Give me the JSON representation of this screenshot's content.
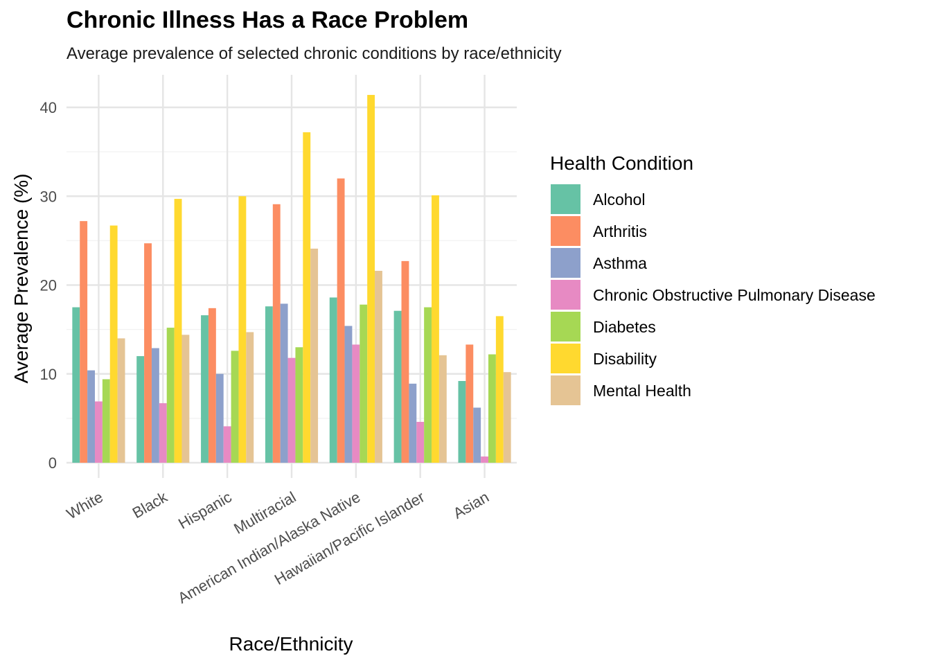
{
  "chart_data": {
    "type": "bar",
    "title": "Chronic Illness Has a Race Problem",
    "subtitle": "Average prevalence of selected chronic conditions by race/ethnicity",
    "xlabel": "Race/Ethnicity",
    "ylabel": "Average Prevalence (%)",
    "ylim": [
      0,
      43
    ],
    "yticks": [
      0,
      10,
      20,
      30,
      40
    ],
    "grid": true,
    "legend_title": "Health Condition",
    "legend_position": "right",
    "categories": [
      "White",
      "Black",
      "Hispanic",
      "Multiracial",
      "American Indian/Alaska Native",
      "Hawaiian/Pacific Islander",
      "Asian"
    ],
    "series": [
      {
        "name": "Alcohol",
        "color": "#66C2A5",
        "values": [
          17.5,
          12.0,
          16.6,
          17.6,
          18.6,
          17.1,
          9.2
        ]
      },
      {
        "name": "Arthritis",
        "color": "#FC8D62",
        "values": [
          27.2,
          24.7,
          17.4,
          29.1,
          32.0,
          22.7,
          13.3
        ]
      },
      {
        "name": "Asthma",
        "color": "#8DA0CB",
        "values": [
          10.4,
          12.9,
          10.0,
          17.9,
          15.4,
          8.9,
          6.2
        ]
      },
      {
        "name": "Chronic Obstructive Pulmonary Disease",
        "color": "#E78AC3",
        "values": [
          6.9,
          6.7,
          4.1,
          11.8,
          13.3,
          4.6,
          0.7
        ]
      },
      {
        "name": "Diabetes",
        "color": "#A6D854",
        "values": [
          9.4,
          15.2,
          12.6,
          13.0,
          17.8,
          17.5,
          12.2
        ]
      },
      {
        "name": "Disability",
        "color": "#FFD92F",
        "values": [
          26.7,
          29.7,
          30.0,
          37.2,
          41.4,
          30.1,
          16.5
        ]
      },
      {
        "name": "Mental Health",
        "color": "#E5C494",
        "values": [
          14.0,
          14.4,
          14.7,
          24.1,
          21.6,
          12.1,
          10.2
        ]
      }
    ]
  }
}
